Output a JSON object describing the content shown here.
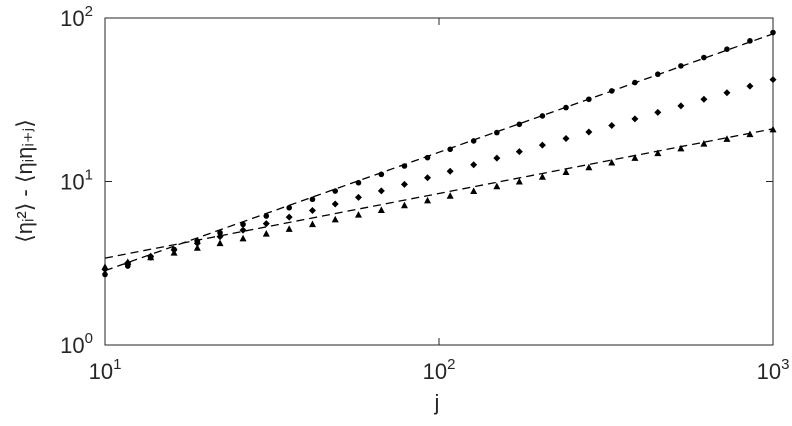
{
  "chart_data": {
    "type": "scatter",
    "xlabel": "j",
    "ylabel": "⟨ηᵢ²⟩ - ⟨ηᵢηᵢ₊ⱼ⟩",
    "xscale": "log",
    "yscale": "log",
    "xlim": [
      10,
      1000
    ],
    "ylim": [
      1,
      100
    ],
    "xticks": [
      {
        "value": 10,
        "label": "10",
        "exponent": "1"
      },
      {
        "value": 100,
        "label": "10",
        "exponent": "2"
      },
      {
        "value": 1000,
        "label": "10",
        "exponent": "3"
      }
    ],
    "yticks": [
      {
        "value": 1,
        "label": "10",
        "exponent": "0"
      },
      {
        "value": 10,
        "label": "10",
        "exponent": "1"
      },
      {
        "value": 100,
        "label": "10",
        "exponent": "2"
      }
    ],
    "x": [
      10,
      11.7,
      13.7,
      16.1,
      18.9,
      22.1,
      25.9,
      30.4,
      35.6,
      41.8,
      48.9,
      57.4,
      67.2,
      78.8,
      92.4,
      108,
      127,
      149,
      174,
      204,
      240,
      281,
      329,
      386,
      452,
      530,
      621,
      728,
      853,
      1000
    ],
    "series": [
      {
        "color": "#000000",
        "marker": "circle",
        "values": [
          2.7,
          3.04,
          3.42,
          3.84,
          4.32,
          4.86,
          5.47,
          6.15,
          6.91,
          7.78,
          8.74,
          9.83,
          11.06,
          12.44,
          13.99,
          15.74,
          17.7,
          19.91,
          22.39,
          25.18,
          28.31,
          31.84,
          35.82,
          40.28,
          45.3,
          50.95,
          57.31,
          64.44,
          72.49,
          81.5
        ]
      },
      {
        "color": "#000000",
        "marker": "diamond",
        "values": [
          2.9,
          3.18,
          3.49,
          3.82,
          4.19,
          4.6,
          5.04,
          5.53,
          6.06,
          6.65,
          7.29,
          7.99,
          8.76,
          9.61,
          10.54,
          11.55,
          12.67,
          13.89,
          15.23,
          16.7,
          18.32,
          20.09,
          22.02,
          24.16,
          26.48,
          29.03,
          31.84,
          34.91,
          38.28,
          41.98
        ]
      },
      {
        "color": "#000000",
        "marker": "triangle",
        "values": [
          3.0,
          3.21,
          3.43,
          3.66,
          3.92,
          4.19,
          4.48,
          4.79,
          5.12,
          5.47,
          5.85,
          6.25,
          6.68,
          7.14,
          7.64,
          8.16,
          8.73,
          9.33,
          9.97,
          10.66,
          11.4,
          12.18,
          13.02,
          13.92,
          14.88,
          15.91,
          17.01,
          18.18,
          19.44,
          20.78
        ]
      }
    ],
    "fits": [
      {
        "color": "#000000",
        "line": "dashed",
        "x": [
          10,
          1000
        ],
        "values": [
          3.4,
          21
        ]
      },
      {
        "color": "#000000",
        "line": "dashed",
        "x": [
          10,
          1000
        ],
        "values": [
          2.85,
          80
        ]
      }
    ]
  }
}
